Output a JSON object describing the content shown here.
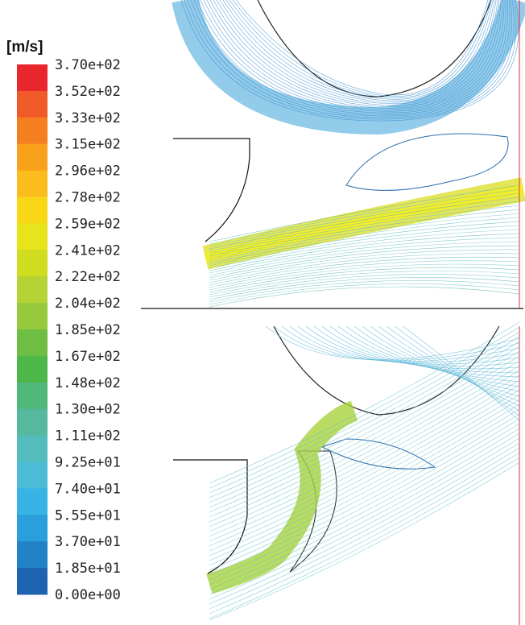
{
  "colorbar": {
    "unit": "[m/s]",
    "labels": [
      "3.70e+02",
      "3.52e+02",
      "3.33e+02",
      "3.15e+02",
      "2.96e+02",
      "2.78e+02",
      "2.59e+02",
      "2.41e+02",
      "2.22e+02",
      "2.04e+02",
      "1.85e+02",
      "1.67e+02",
      "1.48e+02",
      "1.30e+02",
      "1.11e+02",
      "9.25e+01",
      "7.40e+01",
      "5.55e+01",
      "3.70e+01",
      "1.85e+01",
      "0.00e+00"
    ],
    "colors": [
      "#e8262b",
      "#f05a28",
      "#f57f20",
      "#f9a11b",
      "#fbbc1e",
      "#f7d716",
      "#e8e41b",
      "#cfdc20",
      "#b5d334",
      "#97c93d",
      "#6fbe44",
      "#4eb74a",
      "#4fb87a",
      "#56b99e",
      "#55bcbd",
      "#4bbbd6",
      "#38b3e6",
      "#2a9fdc",
      "#2182c7",
      "#1e63b0"
    ]
  }
}
